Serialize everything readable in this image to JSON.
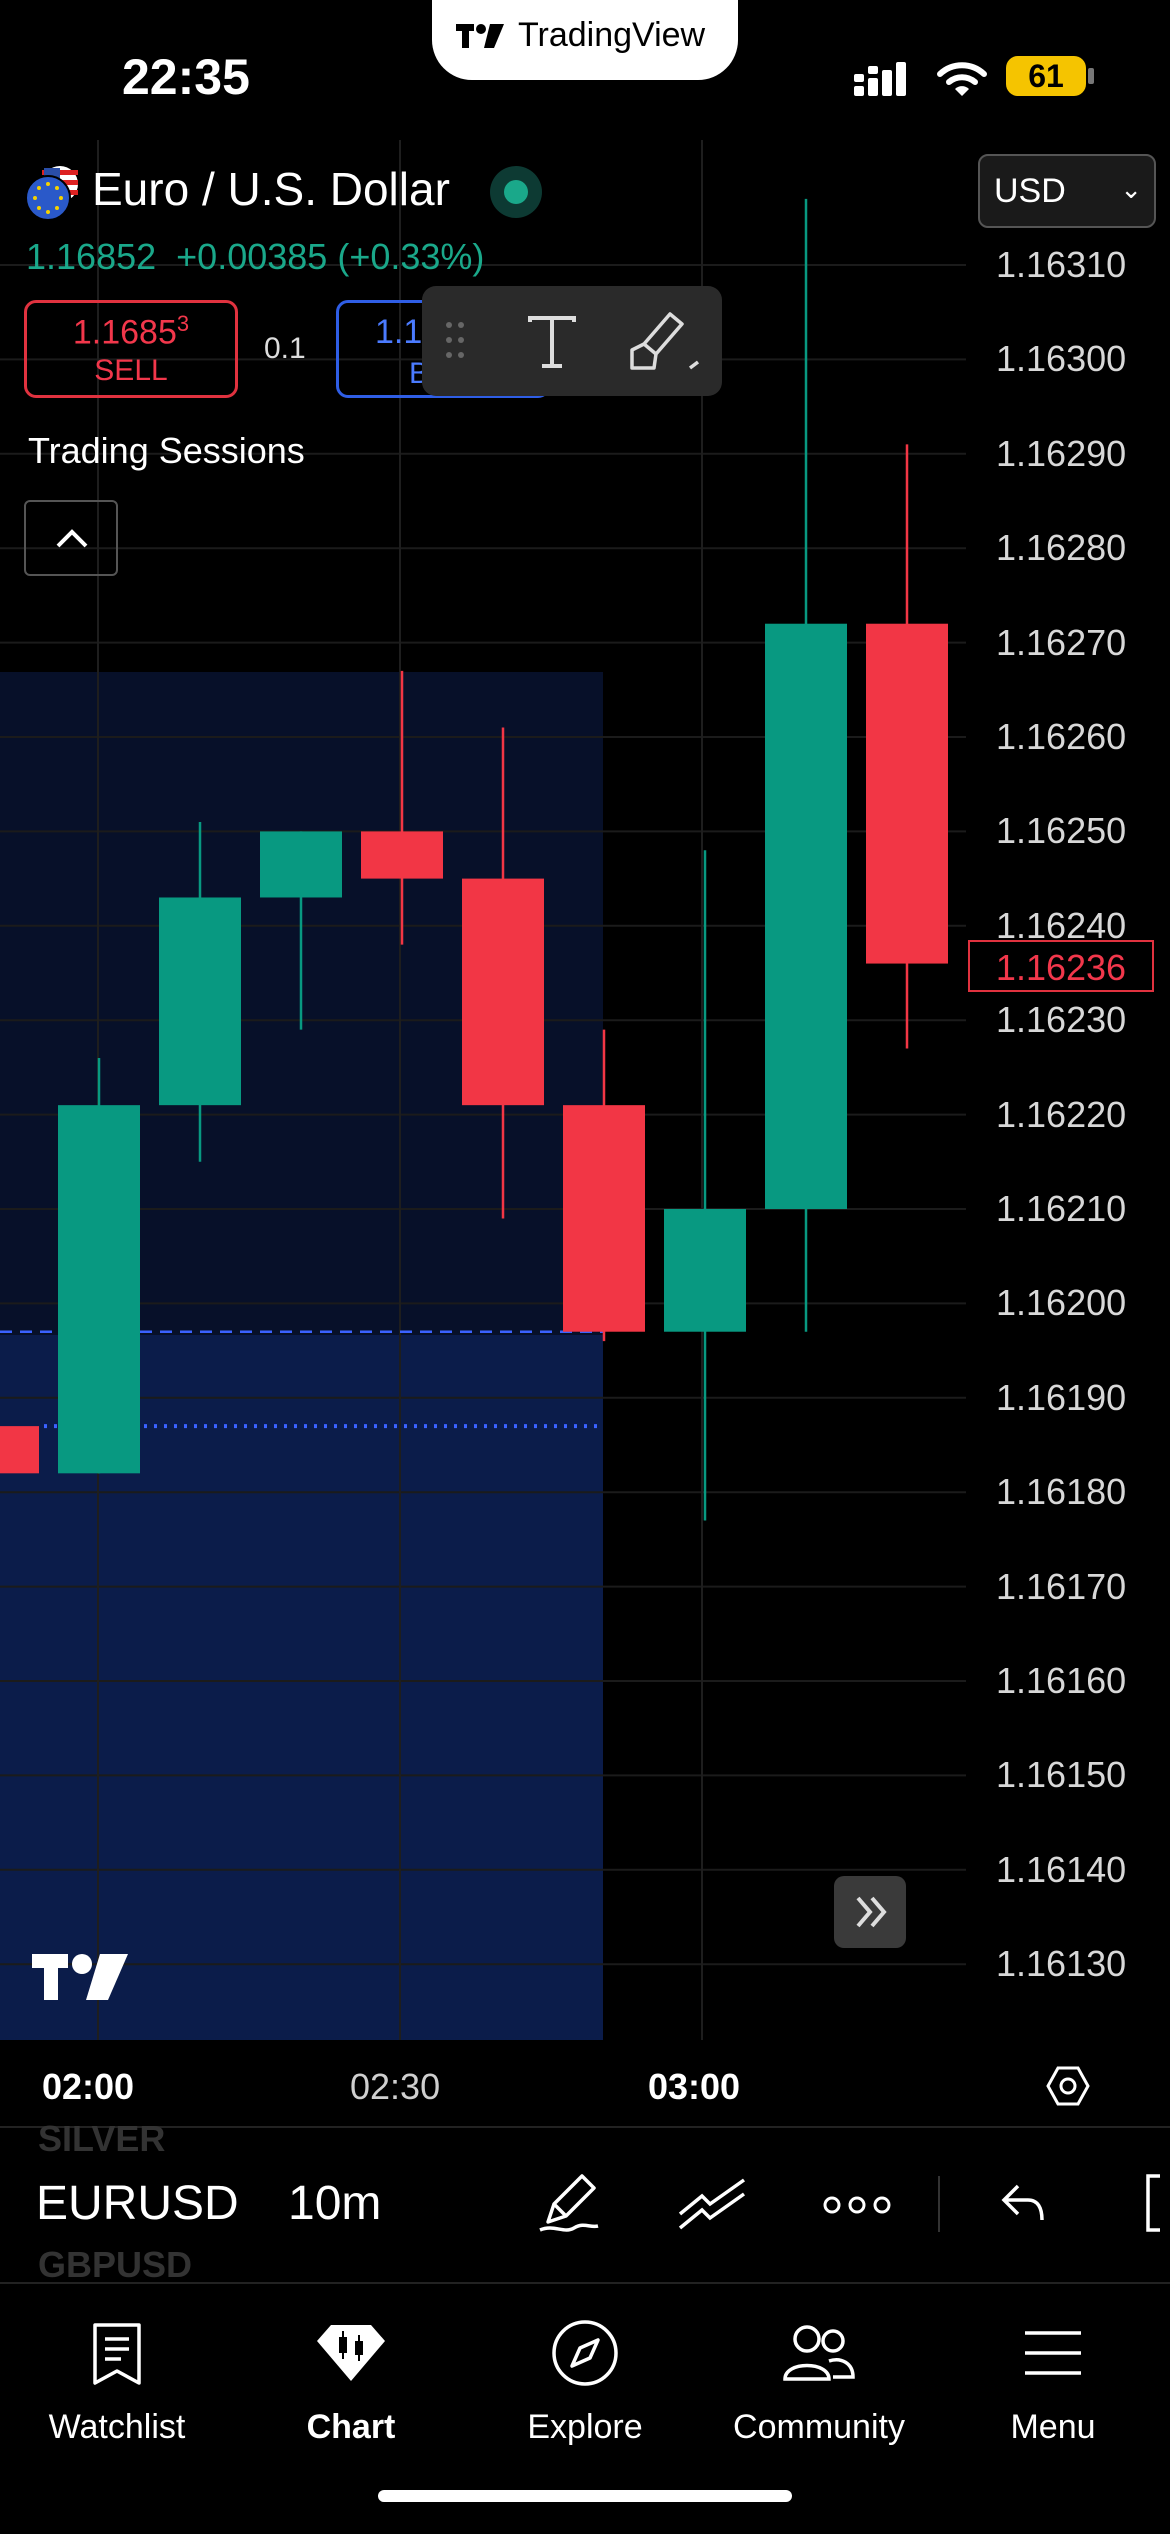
{
  "status_bar": {
    "time": "22:35",
    "app_pill": "TradingView",
    "battery": "61"
  },
  "header": {
    "symbol_name": "Euro / U.S. Dollar",
    "last_price": "1.16852",
    "change": "+0.00385",
    "change_pct": "(+0.33%)",
    "sell": {
      "price_main": "1.1685",
      "price_sup": "3",
      "label": "SELL"
    },
    "qty": "0.1",
    "buy": {
      "price_partial": "1.1",
      "label_partial": "B"
    },
    "currency_select": "USD",
    "indicator_label": "Trading Sessions"
  },
  "chart_data": {
    "type": "candlestick",
    "y_ticks": [
      "1.16310",
      "1.16300",
      "1.16290",
      "1.16280",
      "1.16270",
      "1.16260",
      "1.16250",
      "1.16240",
      "1.16230",
      "1.16220",
      "1.16210",
      "1.16200",
      "1.16190",
      "1.16180",
      "1.16170",
      "1.16160",
      "1.16150",
      "1.16140",
      "1.16130"
    ],
    "ylim": [
      1.16124,
      1.16316
    ],
    "x_ticks": [
      {
        "label": "02:00",
        "bold": true
      },
      {
        "label": "02:30",
        "bold": false
      },
      {
        "label": "03:00",
        "bold": true
      }
    ],
    "current_price": "1.16236",
    "candles": [
      {
        "time": "01:50",
        "open": 1.16187,
        "high": 1.16187,
        "low": 1.16182,
        "close": 1.16182
      },
      {
        "time": "02:00",
        "open": 1.16182,
        "high": 1.16226,
        "low": 1.16182,
        "close": 1.16221
      },
      {
        "time": "02:10",
        "open": 1.16221,
        "high": 1.16251,
        "low": 1.16215,
        "close": 1.16243
      },
      {
        "time": "02:20",
        "open": 1.16243,
        "high": 1.1625,
        "low": 1.16229,
        "close": 1.1625
      },
      {
        "time": "02:30",
        "open": 1.1625,
        "high": 1.16267,
        "low": 1.16238,
        "close": 1.16245
      },
      {
        "time": "02:40",
        "open": 1.16245,
        "high": 1.16261,
        "low": 1.16209,
        "close": 1.16221
      },
      {
        "time": "02:50",
        "open": 1.16221,
        "high": 1.16229,
        "low": 1.16196,
        "close": 1.16197
      },
      {
        "time": "03:00",
        "open": 1.16197,
        "high": 1.16248,
        "low": 1.16177,
        "close": 1.1621
      },
      {
        "time": "03:10",
        "open": 1.1621,
        "high": 1.16317,
        "low": 1.16197,
        "close": 1.16272
      },
      {
        "time": "03:20",
        "open": 1.16272,
        "high": 1.16291,
        "low": 1.16227,
        "close": 1.16236
      }
    ],
    "session_color": "#0d1d4a",
    "dashed_level": 1.16197,
    "dotted_level": 1.16187,
    "up_color": "#089981",
    "down_color": "#f23645"
  },
  "toolbar": {
    "symbol_prev": "SILVER",
    "symbol": "EURUSD",
    "symbol_next": "GBPUSD",
    "interval": "10m"
  },
  "tabs": [
    {
      "label": "Watchlist",
      "icon": "book-icon"
    },
    {
      "label": "Chart",
      "icon": "chart-icon"
    },
    {
      "label": "Explore",
      "icon": "compass-icon"
    },
    {
      "label": "Community",
      "icon": "people-icon"
    },
    {
      "label": "Menu",
      "icon": "hamburger-icon"
    }
  ]
}
